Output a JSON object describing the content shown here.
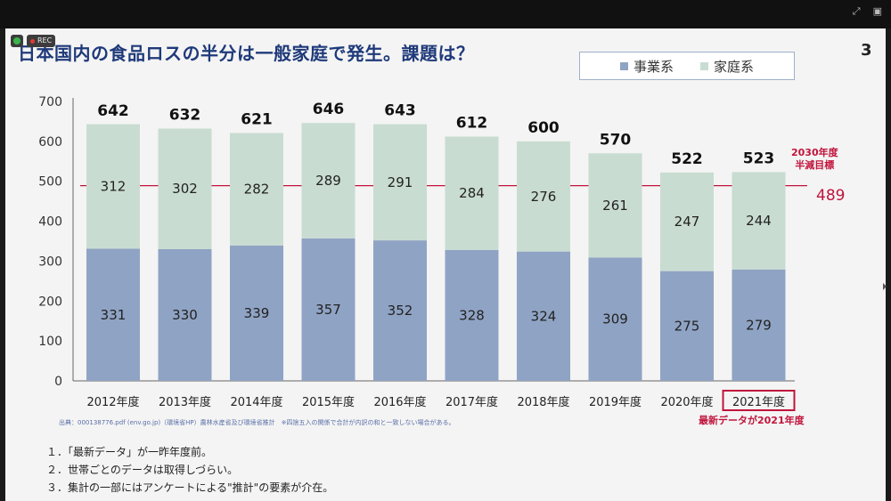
{
  "title": "日本国内の食品ロスの半分は一般家庭で発生。課題は？",
  "page_number": "3",
  "rec_label": "REC",
  "legend": [
    {
      "label": "事業系",
      "color": "#8fa3c4"
    },
    {
      "label": "家庭系",
      "color": "#c9dcd1"
    }
  ],
  "target": {
    "label_line1": "2030年度",
    "label_line2": "半減目標",
    "value_text": "489"
  },
  "latest_note": "最新データが2021年度",
  "source_text": "出典：000138776.pdf (env.go.jp)（環境省HP）農林水産省及び環境省推計　※四捨五入の関係で合計が内訳の和と一致しない場合がある。",
  "notes": [
    "１．「最新データ」が一昨年度前。",
    "２．世帯ごとのデータは取得しづらい。",
    "３．集計の一部にはアンケートによる\"推計\"の要素が介在。"
  ],
  "chart_data": {
    "type": "bar",
    "stacked": true,
    "categories": [
      "2012年度",
      "2013年度",
      "2014年度",
      "2015年度",
      "2016年度",
      "2017年度",
      "2018年度",
      "2019年度",
      "2020年度",
      "2021年度"
    ],
    "series": [
      {
        "name": "事業系",
        "values": [
          331,
          330,
          339,
          357,
          352,
          328,
          324,
          309,
          275,
          279
        ],
        "color": "#8fa3c4"
      },
      {
        "name": "家庭系",
        "values": [
          312,
          302,
          282,
          289,
          291,
          284,
          276,
          261,
          247,
          244
        ],
        "color": "#c9dcd1"
      }
    ],
    "totals": [
      642,
      632,
      621,
      646,
      643,
      612,
      600,
      570,
      522,
      523
    ],
    "yticks": [
      0,
      100,
      200,
      300,
      400,
      500,
      600,
      700
    ],
    "ylim": [
      0,
      700
    ],
    "reference_line": 489,
    "highlight_category": "2021年度",
    "grid": false,
    "legend_position": "top-right"
  }
}
